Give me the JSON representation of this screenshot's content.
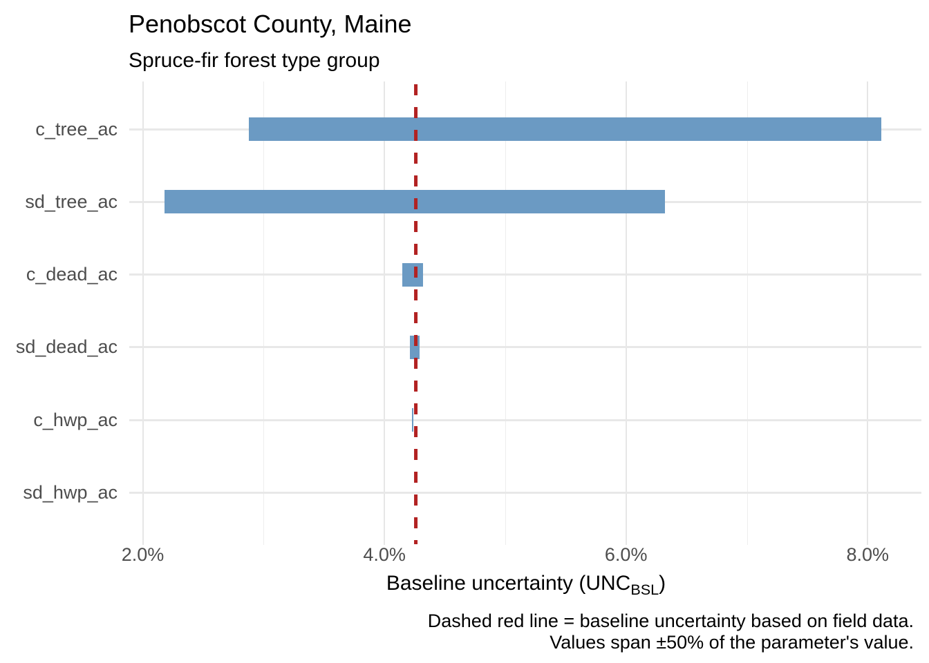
{
  "chart_data": {
    "type": "bar",
    "orientation": "horizontal-range-tornado",
    "title": "Penobscot County, Maine",
    "subtitle": "Spruce-fir forest type group",
    "xlabel_prefix": "Baseline uncertainty (UNC",
    "xlabel_subscript": "BSL",
    "xlabel_suffix": ")",
    "caption_line1": "Dashed red line = baseline uncertainty based on field data.",
    "caption_line2": "Values span ±50% of the parameter's value.",
    "categories": [
      "c_tree_ac",
      "sd_tree_ac",
      "c_dead_ac",
      "sd_dead_ac",
      "c_hwp_ac",
      "sd_hwp_ac"
    ],
    "series": [
      {
        "name": "c_tree_ac",
        "low_pct": 2.88,
        "high_pct": 8.11
      },
      {
        "name": "sd_tree_ac",
        "low_pct": 2.18,
        "high_pct": 6.32
      },
      {
        "name": "c_dead_ac",
        "low_pct": 4.15,
        "high_pct": 4.32
      },
      {
        "name": "sd_dead_ac",
        "low_pct": 4.21,
        "high_pct": 4.29
      },
      {
        "name": "c_hwp_ac",
        "low_pct": 4.23,
        "high_pct": 4.24
      },
      {
        "name": "sd_hwp_ac",
        "low_pct": 4.26,
        "high_pct": 4.26
      }
    ],
    "baseline_pct": 4.26,
    "x_ticks": [
      {
        "value": 2,
        "label": "2.0%"
      },
      {
        "value": 4,
        "label": "4.0%"
      },
      {
        "value": 6,
        "label": "6.0%"
      },
      {
        "value": 8,
        "label": "8.0%"
      }
    ],
    "x_grid_minor_values": [
      3,
      5,
      7
    ],
    "xlim_pct": [
      1.89,
      8.44
    ],
    "grid": "on",
    "legend": "none",
    "colors": {
      "bar": "#6b9ac3",
      "baseline_line": "#b22222",
      "grid_major": "#e6e6e6",
      "grid_minor": "#ededed",
      "axis_text": "#4d4d4d",
      "text": "#000000",
      "background": "#ffffff"
    }
  }
}
